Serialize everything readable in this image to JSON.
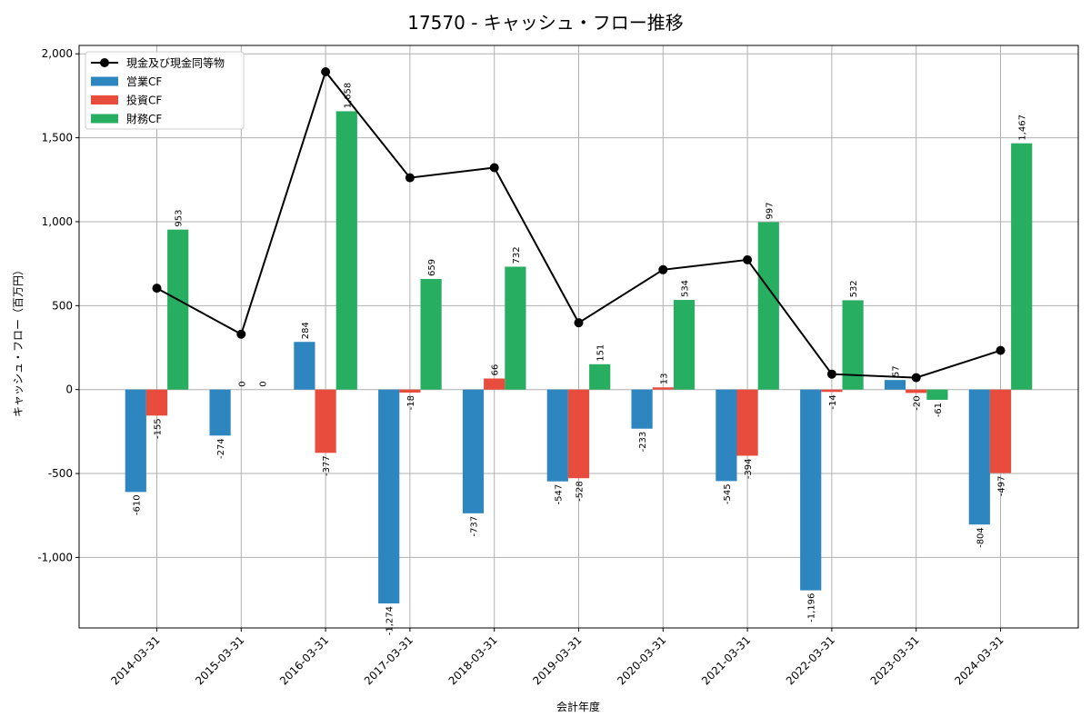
{
  "chart_data": {
    "type": "bar",
    "title": "17570 - キャッシュ・フロー推移",
    "xlabel": "会計年度",
    "ylabel": "キャッシュ・フロー（百万円）",
    "ylim": [
      -1420,
      2050
    ],
    "yticks": [
      -1000,
      -500,
      0,
      500,
      1000,
      1500,
      2000
    ],
    "ytick_labels": [
      "-1,000",
      "-500",
      "0",
      "500",
      "1,000",
      "1,500",
      "2,000"
    ],
    "grid": true,
    "legend_position": "top-left",
    "categories": [
      "2014-03-31",
      "2015-03-31",
      "2016-03-31",
      "2017-03-31",
      "2018-03-31",
      "2019-03-31",
      "2020-03-31",
      "2021-03-31",
      "2022-03-31",
      "2023-03-31",
      "2024-03-31"
    ],
    "series": [
      {
        "name": "営業CF",
        "kind": "bar",
        "color": "#2e86c1",
        "values": [
          -610,
          -274,
          284,
          -1274,
          -737,
          -547,
          -233,
          -545,
          -1196,
          57,
          -804
        ],
        "labels": [
          "-610",
          "-274",
          "284",
          "-1,274",
          "-737",
          "-547",
          "-233",
          "-545",
          "-1,196",
          "57",
          "-804"
        ]
      },
      {
        "name": "投資CF",
        "kind": "bar",
        "color": "#e74c3c",
        "values": [
          -155,
          0,
          -377,
          -18,
          66,
          -528,
          13,
          -394,
          -14,
          -20,
          -497
        ],
        "labels": [
          "-155",
          "0",
          "-377",
          "-18",
          "66",
          "-528",
          "13",
          "-394",
          "-14",
          "-20",
          "-497"
        ]
      },
      {
        "name": "財務CF",
        "kind": "bar",
        "color": "#27ae60",
        "values": [
          953,
          0,
          1658,
          659,
          732,
          151,
          534,
          997,
          532,
          -61,
          1467
        ],
        "labels": [
          "953",
          "0",
          "1,658",
          "659",
          "732",
          "151",
          "534",
          "997",
          "532",
          "-61",
          "1,467"
        ]
      },
      {
        "name": "現金及び現金同等物",
        "kind": "line",
        "color": "#000000",
        "values": [
          604,
          330,
          1893,
          1262,
          1322,
          398,
          714,
          773,
          92,
          71,
          233
        ]
      }
    ]
  }
}
